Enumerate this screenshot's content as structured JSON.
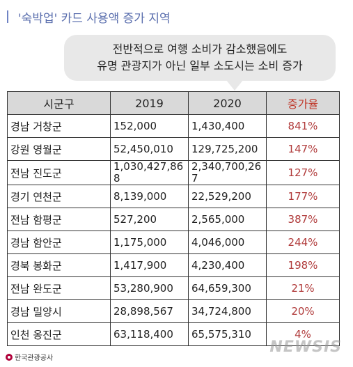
{
  "title": "'숙박업' 카드 사용액 증가 지역",
  "bubble": {
    "line1": "전반적으로 여행 소비가 감소했음에도",
    "line2": "유명 관광지가 아닌 일부 소도시는 소비 증가"
  },
  "table": {
    "headers": [
      "시군구",
      "2019",
      "2020",
      "증가율"
    ],
    "rows": [
      {
        "region": "경남 거창군",
        "y2019": "152,000",
        "y2020": "1,430,400",
        "rate": "841%"
      },
      {
        "region": "강원 영월군",
        "y2019": "52,450,010",
        "y2020": "129,725,200",
        "rate": "147%"
      },
      {
        "region": "전남 진도군",
        "y2019": "1,030,427,868",
        "y2020": "2,340,700,267",
        "rate": "127%"
      },
      {
        "region": "경기 연천군",
        "y2019": "8,139,000",
        "y2020": "22,529,200",
        "rate": "177%"
      },
      {
        "region": "전남 함평군",
        "y2019": "527,200",
        "y2020": "2,565,000",
        "rate": "387%"
      },
      {
        "region": "경남 함안군",
        "y2019": "1,175,000",
        "y2020": "4,046,000",
        "rate": "244%"
      },
      {
        "region": "경북 봉화군",
        "y2019": "1,417,900",
        "y2020": "4,230,400",
        "rate": "198%"
      },
      {
        "region": "전남 완도군",
        "y2019": "53,280,900",
        "y2020": "64,659,300",
        "rate": "21%"
      },
      {
        "region": "경남 밀양시",
        "y2019": "28,898,567",
        "y2020": "34,724,800",
        "rate": "20%"
      },
      {
        "region": "인천 옹진군",
        "y2019": "63,118,400",
        "y2020": "65,575,310",
        "rate": "4%"
      }
    ]
  },
  "logo_text": "한국관광공사",
  "watermark": "NEWSIS",
  "colors": {
    "title": "#5b6fae",
    "rate": "#b03a3a",
    "header_bg": "#d9d9d9"
  }
}
